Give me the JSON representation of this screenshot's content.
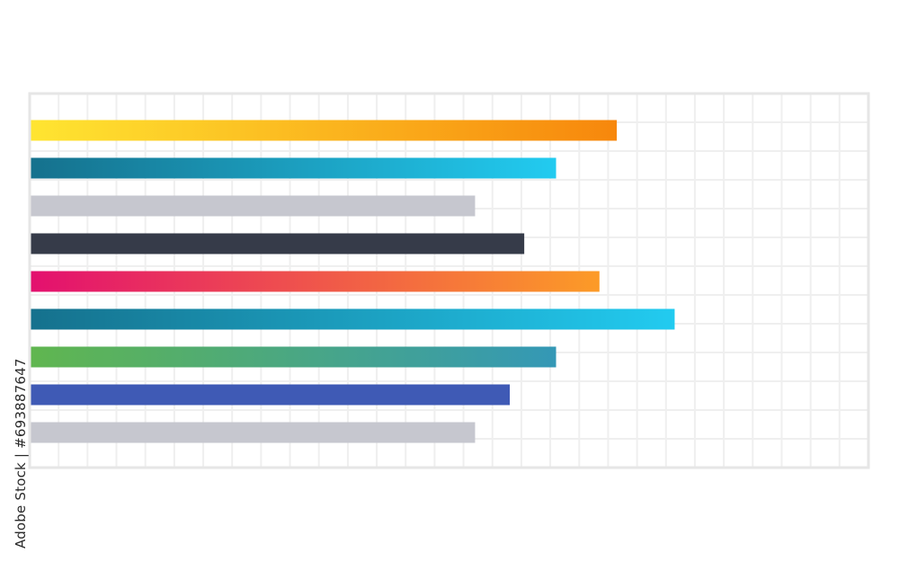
{
  "watermark": {
    "side_text": "Adobe Stock | #693887647"
  },
  "chart_data": {
    "type": "bar",
    "orientation": "horizontal",
    "title": "",
    "xlabel": "",
    "ylabel": "",
    "xlim": [
      0,
      29
    ],
    "grid": true,
    "legend": "none",
    "categories": [
      "",
      "",
      "",
      "",
      "",
      "",
      "",
      "",
      ""
    ],
    "values": [
      20.3,
      18.2,
      15.4,
      17.1,
      19.7,
      22.3,
      18.2,
      16.6,
      15.4
    ],
    "colors": [
      {
        "start": "#ffe531",
        "end": "#f7870c"
      },
      {
        "start": "#15718d",
        "end": "#22cbf0"
      },
      {
        "start": "#c6c7cf",
        "end": "#c6c7cf"
      },
      {
        "start": "#363b49",
        "end": "#363b49"
      },
      {
        "start": "#e3106f",
        "end": "#fc9b27"
      },
      {
        "start": "#15718d",
        "end": "#22cbf0"
      },
      {
        "start": "#60b64f",
        "end": "#3498b6"
      },
      {
        "start": "#3f5ab5",
        "end": "#3f5ab5"
      },
      {
        "start": "#c6c7cf",
        "end": "#c6c7cf"
      }
    ],
    "grid_color": "#efefef",
    "frame_color": "#e6e6e6"
  }
}
